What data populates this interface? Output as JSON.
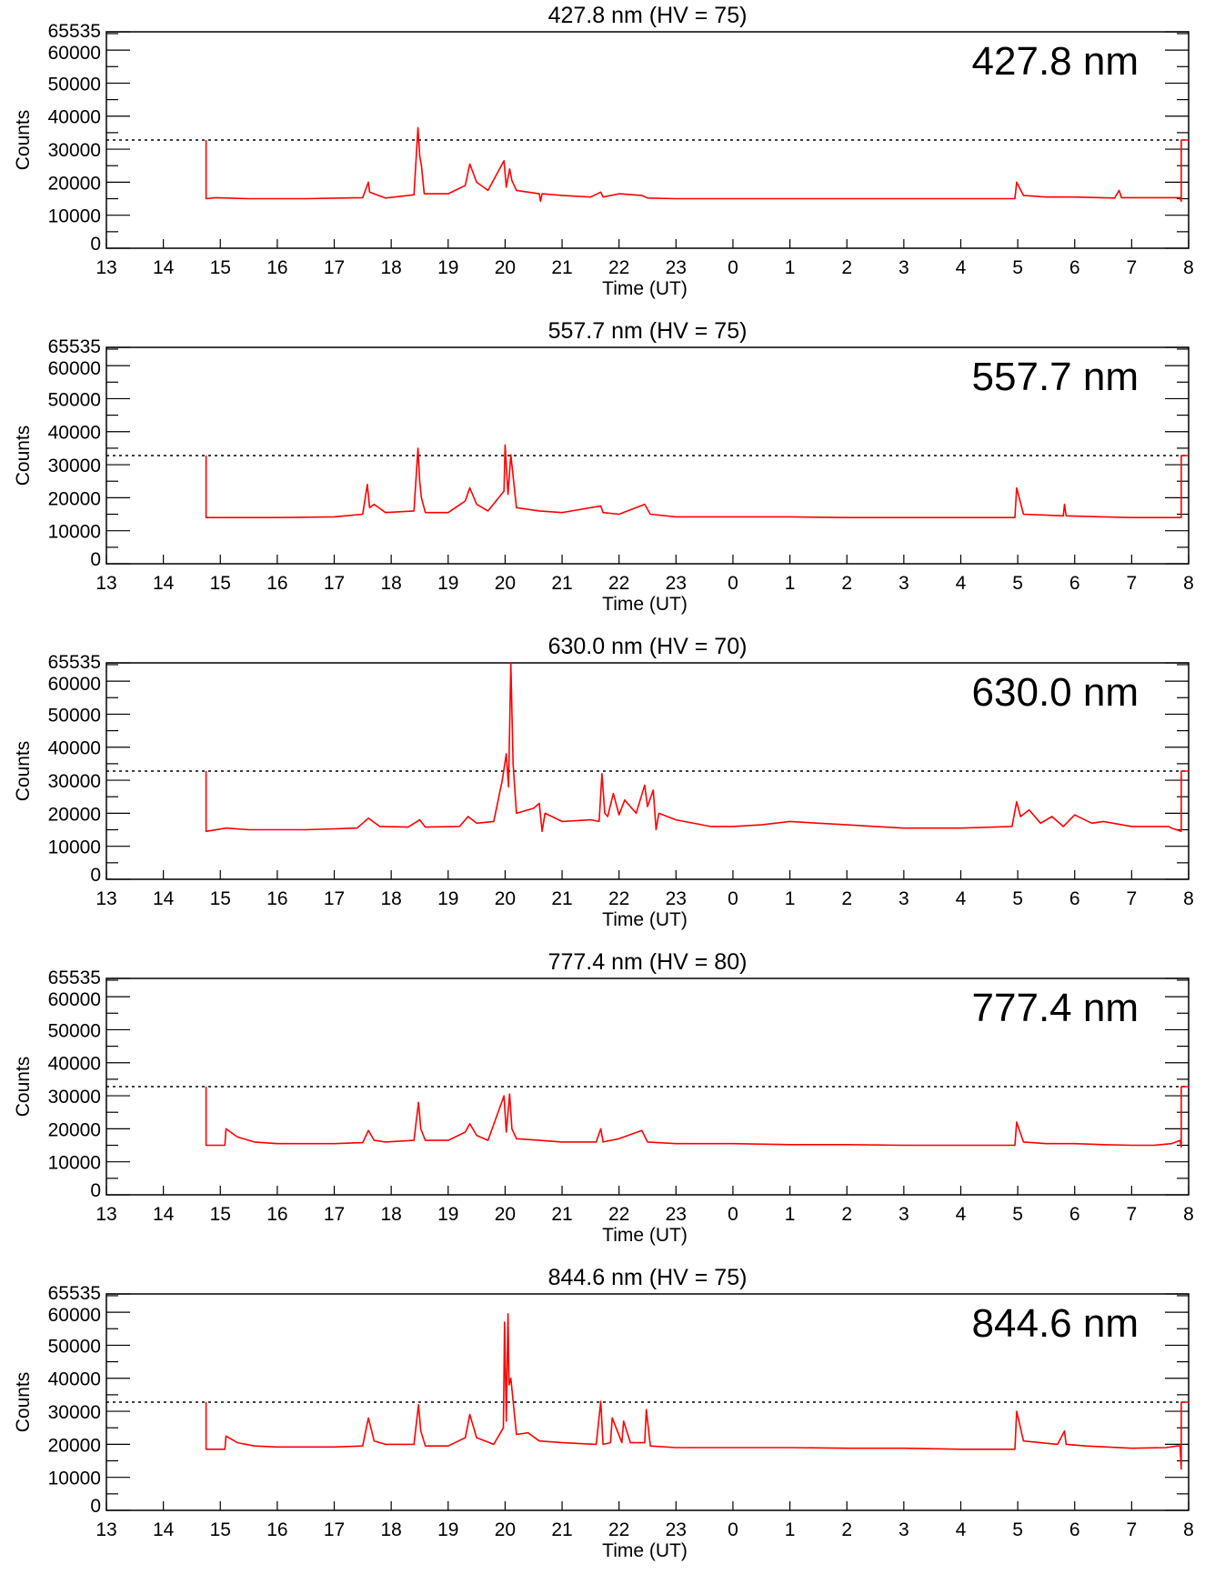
{
  "chart_data": [
    {
      "type": "line",
      "title": "427.8 nm (HV = 75)",
      "annotation": "427.8 nm",
      "xlabel": "Time (UT)",
      "ylabel": "Counts",
      "x_tick_labels": [
        "13",
        "14",
        "15",
        "16",
        "17",
        "18",
        "19",
        "20",
        "21",
        "22",
        "23",
        "0",
        "1",
        "2",
        "3",
        "4",
        "5",
        "6",
        "7",
        "8"
      ],
      "y_tick_labels": [
        "0",
        "10000",
        "20000",
        "30000",
        "40000",
        "50000",
        "60000",
        "65535"
      ],
      "y_ticks": [
        0,
        10000,
        20000,
        30000,
        40000,
        50000,
        60000,
        65535
      ],
      "xlim": [
        13,
        32
      ],
      "ylim": [
        0,
        65535
      ],
      "threshold": 32768,
      "color": "#ff0000",
      "series": [
        {
          "x": [
            14.75,
            14.75,
            14.9,
            15.5,
            16.5,
            17.5,
            17.6,
            17.62,
            17.7,
            17.9,
            18.4,
            18.47,
            18.5,
            18.53,
            18.58,
            19.0,
            19.3,
            19.38,
            19.5,
            19.7,
            19.98,
            20.02,
            20.08,
            20.12,
            20.2,
            20.6,
            20.62,
            20.65,
            21.0,
            21.5,
            21.68,
            21.72,
            22.0,
            22.4,
            22.5,
            23.0,
            24.0,
            25.0,
            26.0,
            27.0,
            28.0,
            28.95,
            28.98,
            29.1,
            29.5,
            30.0,
            30.7,
            30.78,
            30.82,
            31.0,
            31.6,
            31.85,
            31.87,
            31.87,
            32.0
          ],
          "y": [
            32768,
            15000,
            15300,
            15000,
            15000,
            15300,
            20000,
            17000,
            16500,
            15200,
            16200,
            36500,
            28000,
            25000,
            16500,
            16500,
            19000,
            25500,
            20000,
            17500,
            26500,
            18500,
            24000,
            20500,
            17500,
            16500,
            14200,
            16500,
            16000,
            15500,
            17000,
            15500,
            16500,
            16000,
            15200,
            15000,
            15000,
            15000,
            15000,
            15000,
            15000,
            15000,
            20000,
            16000,
            15500,
            15500,
            15200,
            17500,
            15300,
            15300,
            15300,
            15300,
            14200,
            32768,
            32768
          ]
        }
      ]
    },
    {
      "type": "line",
      "title": "557.7 nm (HV = 75)",
      "annotation": "557.7 nm",
      "xlabel": "Time (UT)",
      "ylabel": "Counts",
      "x_tick_labels": [
        "13",
        "14",
        "15",
        "16",
        "17",
        "18",
        "19",
        "20",
        "21",
        "22",
        "23",
        "0",
        "1",
        "2",
        "3",
        "4",
        "5",
        "6",
        "7",
        "8"
      ],
      "y_tick_labels": [
        "0",
        "10000",
        "20000",
        "30000",
        "40000",
        "50000",
        "60000",
        "65535"
      ],
      "y_ticks": [
        0,
        10000,
        20000,
        30000,
        40000,
        50000,
        60000,
        65535
      ],
      "xlim": [
        13,
        32
      ],
      "ylim": [
        0,
        65535
      ],
      "threshold": 32768,
      "color": "#ff0000",
      "series": [
        {
          "x": [
            14.75,
            14.75,
            15.0,
            16.0,
            17.0,
            17.5,
            17.58,
            17.62,
            17.7,
            17.9,
            18.4,
            18.47,
            18.5,
            18.53,
            18.6,
            19.0,
            19.3,
            19.38,
            19.5,
            19.7,
            19.98,
            20.0,
            20.05,
            20.1,
            20.2,
            20.6,
            21.0,
            21.68,
            21.72,
            22.0,
            22.45,
            22.55,
            23.0,
            24.0,
            25.0,
            26.0,
            27.0,
            28.0,
            28.95,
            28.98,
            29.1,
            29.8,
            29.82,
            29.85,
            30.5,
            31.0,
            31.87,
            31.87,
            32.0
          ],
          "y": [
            32768,
            14000,
            14000,
            14000,
            14200,
            15000,
            24000,
            17000,
            18000,
            15500,
            16000,
            35000,
            25000,
            20000,
            15500,
            15500,
            19000,
            23000,
            18000,
            16000,
            22000,
            36000,
            21000,
            33000,
            17000,
            16000,
            15500,
            17500,
            15500,
            15000,
            18000,
            15000,
            14200,
            14200,
            14200,
            14000,
            14000,
            14000,
            14000,
            23000,
            15000,
            14500,
            18000,
            14500,
            14200,
            14000,
            14000,
            32768,
            32768
          ]
        }
      ]
    },
    {
      "type": "line",
      "title": "630.0 nm (HV = 70)",
      "annotation": "630.0 nm",
      "xlabel": "Time (UT)",
      "ylabel": "Counts",
      "x_tick_labels": [
        "13",
        "14",
        "15",
        "16",
        "17",
        "18",
        "19",
        "20",
        "21",
        "22",
        "23",
        "0",
        "1",
        "2",
        "3",
        "4",
        "5",
        "6",
        "7",
        "8"
      ],
      "y_tick_labels": [
        "0",
        "10000",
        "20000",
        "30000",
        "40000",
        "50000",
        "60000",
        "65535"
      ],
      "y_ticks": [
        0,
        10000,
        20000,
        30000,
        40000,
        50000,
        60000,
        65535
      ],
      "xlim": [
        13,
        32
      ],
      "ylim": [
        0,
        65535
      ],
      "threshold": 32768,
      "color": "#ff0000",
      "series": [
        {
          "x": [
            14.75,
            14.75,
            15.1,
            15.5,
            16.5,
            17.4,
            17.6,
            17.8,
            18.3,
            18.5,
            18.6,
            19.2,
            19.35,
            19.5,
            19.8,
            19.95,
            20.02,
            20.06,
            20.1,
            20.14,
            20.2,
            20.5,
            20.6,
            20.65,
            20.7,
            21.0,
            21.5,
            21.65,
            21.7,
            21.75,
            21.8,
            21.9,
            22.0,
            22.1,
            22.3,
            22.45,
            22.5,
            22.6,
            22.65,
            22.7,
            23.0,
            23.6,
            24.0,
            24.5,
            25.0,
            25.5,
            26.0,
            26.5,
            27.0,
            27.5,
            28.0,
            28.9,
            28.98,
            29.05,
            29.2,
            29.4,
            29.6,
            29.8,
            30.0,
            30.3,
            30.5,
            31.0,
            31.65,
            31.7,
            31.87,
            31.87,
            32.0
          ],
          "y": [
            32768,
            14500,
            15500,
            15000,
            15000,
            15500,
            18500,
            16000,
            15800,
            18000,
            15800,
            16000,
            19000,
            17000,
            17500,
            30000,
            38000,
            28000,
            65535,
            35000,
            20000,
            21500,
            23000,
            14500,
            20000,
            17500,
            18000,
            17500,
            32000,
            20000,
            19000,
            26000,
            19500,
            24000,
            20000,
            28500,
            22000,
            27000,
            15000,
            20000,
            18000,
            16000,
            16000,
            16500,
            17500,
            17000,
            16500,
            16000,
            15500,
            15500,
            15500,
            16000,
            23500,
            19000,
            21000,
            17000,
            19000,
            16000,
            19500,
            17000,
            17500,
            16000,
            16000,
            15500,
            14500,
            32768,
            32768
          ]
        }
      ]
    },
    {
      "type": "line",
      "title": "777.4 nm (HV = 80)",
      "annotation": "777.4 nm",
      "xlabel": "Time (UT)",
      "ylabel": "Counts",
      "x_tick_labels": [
        "13",
        "14",
        "15",
        "16",
        "17",
        "18",
        "19",
        "20",
        "21",
        "22",
        "23",
        "0",
        "1",
        "2",
        "3",
        "4",
        "5",
        "6",
        "7",
        "8"
      ],
      "y_tick_labels": [
        "0",
        "10000",
        "20000",
        "30000",
        "40000",
        "50000",
        "60000",
        "65535"
      ],
      "y_ticks": [
        0,
        10000,
        20000,
        30000,
        40000,
        50000,
        60000,
        65535
      ],
      "xlim": [
        13,
        32
      ],
      "ylim": [
        0,
        65535
      ],
      "threshold": 32768,
      "color": "#ff0000",
      "series": [
        {
          "x": [
            14.75,
            14.75,
            15.08,
            15.1,
            15.3,
            15.6,
            16.0,
            17.0,
            17.5,
            17.6,
            17.7,
            17.9,
            18.4,
            18.48,
            18.52,
            18.6,
            19.0,
            19.3,
            19.38,
            19.5,
            19.7,
            19.98,
            20.02,
            20.08,
            20.12,
            20.2,
            20.6,
            21.0,
            21.6,
            21.68,
            21.72,
            22.0,
            22.4,
            22.5,
            23.0,
            24.0,
            25.0,
            26.0,
            27.0,
            28.0,
            28.95,
            28.98,
            29.1,
            29.5,
            30.0,
            30.5,
            31.0,
            31.4,
            31.7,
            31.85,
            31.87,
            31.87,
            32.0
          ],
          "y": [
            32768,
            15000,
            15000,
            20000,
            17500,
            16000,
            15500,
            15500,
            15800,
            19500,
            16500,
            16000,
            16500,
            28000,
            20000,
            16500,
            16500,
            19000,
            21500,
            18000,
            16500,
            30000,
            19000,
            30500,
            20000,
            17000,
            16500,
            16000,
            16000,
            20000,
            16000,
            17000,
            19500,
            16000,
            15500,
            15500,
            15200,
            15200,
            15000,
            15000,
            15000,
            22000,
            16000,
            15500,
            15500,
            15200,
            15000,
            15000,
            15500,
            16500,
            14500,
            32768,
            32768
          ]
        }
      ]
    },
    {
      "type": "line",
      "title": "844.6 nm (HV = 75)",
      "annotation": "844.6 nm",
      "xlabel": "Time (UT)",
      "ylabel": "Counts",
      "x_tick_labels": [
        "13",
        "14",
        "15",
        "16",
        "17",
        "18",
        "19",
        "20",
        "21",
        "22",
        "23",
        "0",
        "1",
        "2",
        "3",
        "4",
        "5",
        "6",
        "7",
        "8"
      ],
      "y_tick_labels": [
        "0",
        "10000",
        "20000",
        "30000",
        "40000",
        "50000",
        "60000",
        "65535"
      ],
      "y_ticks": [
        0,
        10000,
        20000,
        30000,
        40000,
        50000,
        60000,
        65535
      ],
      "xlim": [
        13,
        32
      ],
      "ylim": [
        0,
        65535
      ],
      "threshold": 32768,
      "color": "#ff0000",
      "series": [
        {
          "x": [
            14.75,
            14.75,
            15.08,
            15.1,
            15.3,
            15.6,
            16.0,
            17.0,
            17.5,
            17.6,
            17.7,
            17.9,
            18.4,
            18.48,
            18.52,
            18.6,
            19.0,
            19.3,
            19.38,
            19.5,
            19.8,
            19.97,
            19.99,
            20.02,
            20.05,
            20.07,
            20.1,
            20.2,
            20.4,
            20.6,
            21.0,
            21.6,
            21.68,
            21.72,
            21.85,
            21.88,
            22.05,
            22.08,
            22.2,
            22.45,
            22.48,
            22.55,
            23.0,
            24.0,
            25.0,
            26.0,
            27.0,
            28.0,
            28.95,
            28.98,
            29.1,
            29.7,
            29.82,
            29.85,
            30.2,
            31.0,
            31.6,
            31.8,
            31.85,
            31.87,
            31.87,
            32.0
          ],
          "y": [
            32768,
            18500,
            18500,
            22500,
            20500,
            19500,
            19200,
            19200,
            19500,
            28000,
            21000,
            20000,
            20000,
            32000,
            24000,
            19500,
            19500,
            22000,
            29000,
            22000,
            20000,
            25000,
            57000,
            27000,
            59500,
            38000,
            40000,
            23000,
            23500,
            21000,
            20500,
            20000,
            33000,
            20000,
            20500,
            28000,
            20500,
            27000,
            20500,
            20500,
            30500,
            19500,
            19000,
            19000,
            19000,
            18800,
            18800,
            18500,
            18500,
            30000,
            21000,
            20000,
            24000,
            20000,
            19500,
            18800,
            19000,
            19500,
            19500,
            12500,
            32768,
            32768
          ]
        }
      ]
    }
  ]
}
